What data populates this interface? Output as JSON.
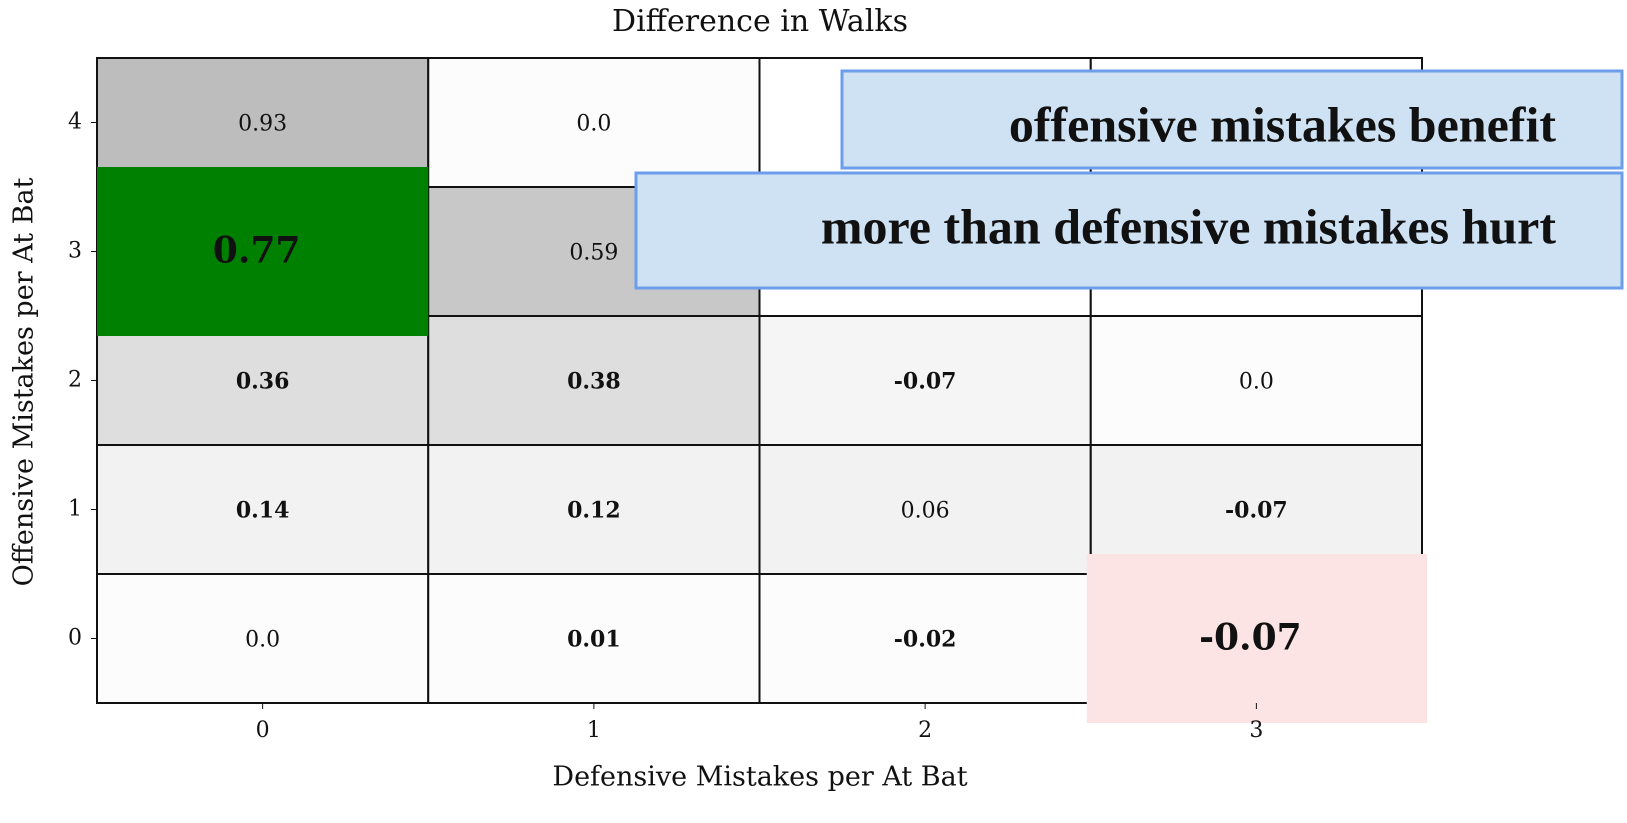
{
  "chart_data": {
    "type": "heatmap",
    "title": "Difference in Walks",
    "x_label": "Defensive Mistakes per At Bat",
    "y_label": "Offensive Mistakes per At Bat",
    "x_categories": [
      0,
      1,
      2,
      3
    ],
    "y_categories": [
      0,
      1,
      2,
      3,
      4
    ],
    "values": [
      [
        0,
        0.01,
        -0.02,
        -0.07
      ],
      [
        0.14,
        0.12,
        0.06,
        -0.07
      ],
      [
        0.36,
        0.38,
        -0.07,
        0
      ],
      [
        0.77,
        0.59,
        null,
        null
      ],
      [
        0.93,
        0,
        null,
        null
      ]
    ],
    "value_labels": [
      [
        "0.0",
        "0.01",
        "-0.02",
        "-0.07"
      ],
      [
        "0.14",
        "0.12",
        "0.06",
        "-0.07"
      ],
      [
        "0.36",
        "0.38",
        "-0.07",
        "0.0"
      ],
      [
        "0.77",
        "0.59",
        null,
        null
      ],
      [
        "0.93",
        "0.0",
        null,
        null
      ]
    ],
    "bold": [
      [
        false,
        true,
        true,
        true
      ],
      [
        true,
        true,
        false,
        true
      ],
      [
        true,
        true,
        true,
        false
      ],
      [
        true,
        false,
        false,
        false
      ],
      [
        false,
        false,
        false,
        false
      ]
    ],
    "cell_colors": [
      [
        "#fcfcfc",
        "#fcfcfc",
        "#fcfcfc",
        "#fcfcfc"
      ],
      [
        "#f2f2f2",
        "#f2f2f2",
        "#f2f2f2",
        "#f2f2f2"
      ],
      [
        "#dedede",
        "#dedede",
        "#f5f5f5",
        "#fcfcfc"
      ],
      [
        "#008000",
        "#c8c8c8",
        "#ffffff",
        "#ffffff"
      ],
      [
        "#bdbdbd",
        "#fcfcfc",
        "#ffffff",
        "#ffffff"
      ]
    ],
    "highlights": [
      {
        "row": 3,
        "col": 0,
        "color": "#008000"
      },
      {
        "row": 0,
        "col": 3,
        "color": "#fce4e4"
      }
    ],
    "annotations": [
      "offensive mistakes benefit",
      "more than defensive mistakes hurt"
    ]
  }
}
